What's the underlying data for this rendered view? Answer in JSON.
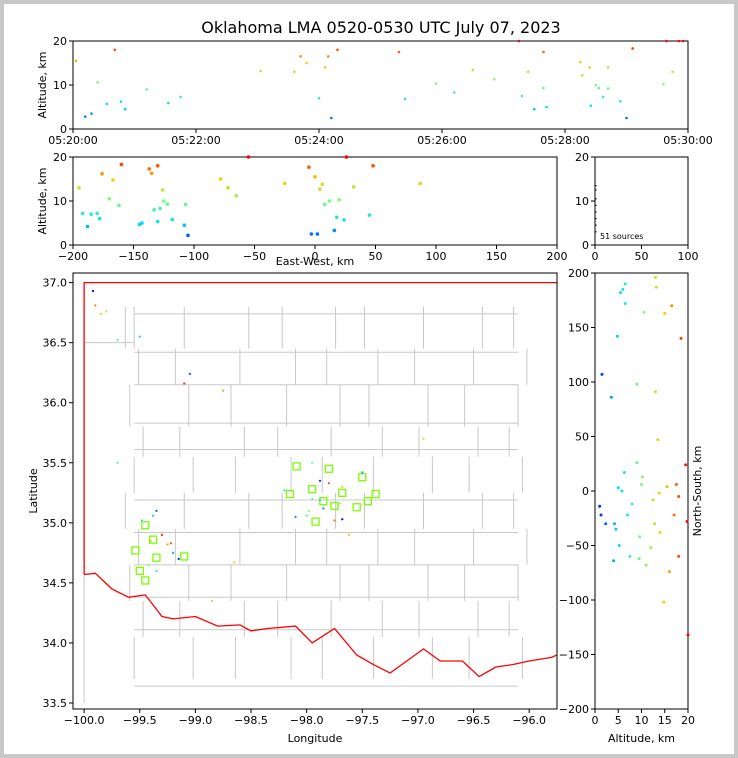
{
  "title": "Oklahoma LMA 0520-0530 UTC July 07, 2023",
  "colors": {
    "state_border": "#ff0000",
    "county_lines": "#c8c8c8",
    "station_marker": "#7cfc00"
  },
  "chart_data": [
    {
      "id": "time_altitude",
      "type": "scatter",
      "xlabel": "",
      "ylabel": "Altitude, km",
      "x_ticks": [
        "05:20:00",
        "05:22:00",
        "05:24:00",
        "05:26:00",
        "05:28:00",
        "05:30:00"
      ],
      "x_range_minutes": [
        0,
        10
      ],
      "ylim": [
        0,
        20
      ],
      "y_ticks": [
        0,
        10,
        20
      ],
      "points": [
        [
          0.05,
          15.5
        ],
        [
          0.2,
          2.8
        ],
        [
          0.3,
          3.5
        ],
        [
          0.4,
          10.6
        ],
        [
          0.55,
          5.7
        ],
        [
          0.68,
          18
        ],
        [
          0.78,
          6.2
        ],
        [
          0.85,
          4.5
        ],
        [
          1.2,
          9
        ],
        [
          1.55,
          5.9
        ],
        [
          1.75,
          7.3
        ],
        [
          3.05,
          13.2
        ],
        [
          3.6,
          13
        ],
        [
          3.7,
          16.5
        ],
        [
          3.8,
          15
        ],
        [
          4.0,
          7
        ],
        [
          4.1,
          14
        ],
        [
          4.15,
          16.5
        ],
        [
          4.2,
          2.5
        ],
        [
          4.3,
          18
        ],
        [
          5.3,
          17.5
        ],
        [
          5.4,
          6.8
        ],
        [
          5.9,
          10.3
        ],
        [
          6.2,
          8.3
        ],
        [
          6.5,
          13.4
        ],
        [
          6.85,
          11.3
        ],
        [
          7.25,
          20
        ],
        [
          7.3,
          7.5
        ],
        [
          7.4,
          13
        ],
        [
          7.5,
          4.5
        ],
        [
          7.65,
          17.5
        ],
        [
          7.65,
          9.3
        ],
        [
          7.7,
          5
        ],
        [
          8.25,
          15.2
        ],
        [
          8.28,
          12.2
        ],
        [
          8.4,
          14
        ],
        [
          8.42,
          5.3
        ],
        [
          8.5,
          10
        ],
        [
          8.55,
          9.3
        ],
        [
          8.62,
          7.3
        ],
        [
          8.7,
          9.2
        ],
        [
          8.7,
          14
        ],
        [
          8.9,
          6.3
        ],
        [
          9.0,
          2.5
        ],
        [
          9.1,
          18.3
        ],
        [
          9.6,
          10.2
        ],
        [
          9.65,
          20
        ],
        [
          9.75,
          13
        ],
        [
          9.85,
          20
        ],
        [
          9.92,
          20
        ]
      ]
    },
    {
      "id": "ew_altitude",
      "type": "scatter",
      "xlabel": "East-West, km",
      "ylabel": "Altitude, km",
      "xlim": [
        -200,
        200
      ],
      "x_ticks": [
        -200,
        -150,
        -100,
        -50,
        0,
        50,
        100,
        150,
        200
      ],
      "ylim": [
        0,
        20
      ],
      "y_ticks": [
        0,
        10,
        20
      ],
      "points": [
        [
          -195,
          13
        ],
        [
          -192,
          7.2
        ],
        [
          -188,
          4.2
        ],
        [
          -185,
          7
        ],
        [
          -180,
          7.2
        ],
        [
          -178,
          6
        ],
        [
          -176,
          16.2
        ],
        [
          -170,
          10.5
        ],
        [
          -167,
          14.8
        ],
        [
          -162,
          9
        ],
        [
          -160,
          18.3
        ],
        [
          -145,
          4.7
        ],
        [
          -143,
          5
        ],
        [
          -137,
          17.3
        ],
        [
          -135,
          16.3
        ],
        [
          -133,
          8
        ],
        [
          -130,
          18
        ],
        [
          -130,
          5.3
        ],
        [
          -128,
          8.3
        ],
        [
          -126,
          12.5
        ],
        [
          -125,
          10
        ],
        [
          -122,
          9.3
        ],
        [
          -118,
          5.8
        ],
        [
          -108,
          4.5
        ],
        [
          -107,
          9.2
        ],
        [
          -105,
          2.2
        ],
        [
          -78,
          15
        ],
        [
          -72,
          13
        ],
        [
          -65,
          11.2
        ],
        [
          -55,
          20
        ],
        [
          -25,
          14
        ],
        [
          -5,
          17.7
        ],
        [
          -3,
          2.5
        ],
        [
          0,
          15.5
        ],
        [
          2,
          2.5
        ],
        [
          4,
          12.7
        ],
        [
          6,
          13.8
        ],
        [
          8,
          9.2
        ],
        [
          12,
          10
        ],
        [
          16,
          3.3
        ],
        [
          18,
          6.3
        ],
        [
          20,
          10.3
        ],
        [
          24,
          5.7
        ],
        [
          26,
          20
        ],
        [
          32,
          13.2
        ],
        [
          45,
          6.8
        ],
        [
          48,
          18
        ],
        [
          87,
          14
        ]
      ]
    },
    {
      "id": "histogram",
      "type": "scatter",
      "xlim": [
        0,
        100
      ],
      "x_ticks": [
        0,
        50,
        100
      ],
      "ylim": [
        0,
        20
      ],
      "y_ticks": [
        0,
        10,
        20
      ],
      "annotation": "51 sources",
      "points": [
        [
          0.5,
          13.5
        ],
        [
          0.5,
          12.5
        ],
        [
          0.5,
          10.5
        ],
        [
          0.5,
          9
        ],
        [
          0.5,
          7.5
        ],
        [
          0.5,
          6
        ],
        [
          0.5,
          4.5
        ],
        [
          0.5,
          3
        ]
      ]
    },
    {
      "id": "plan_view",
      "type": "scatter",
      "xlabel": "Longitude",
      "ylabel": "Latitude",
      "xlim": [
        -100.1,
        -95.75
      ],
      "x_ticks": [
        -100.0,
        -99.5,
        -99.0,
        -98.5,
        -98.0,
        -97.5,
        -97.0,
        -96.5,
        -96.0
      ],
      "x_tick_labels": [
        "−100.0",
        "−99.5",
        "−99.0",
        "−98.5",
        "−98.0",
        "−97.5",
        "−97.0",
        "−96.5",
        "−96.0"
      ],
      "ylim": [
        33.45,
        37.08
      ],
      "y_ticks": [
        33.5,
        34.0,
        34.5,
        35.0,
        35.5,
        36.0,
        36.5,
        37.0
      ],
      "y_tick_labels": [
        "33.5",
        "34.0",
        "34.5",
        "35.0",
        "35.5",
        "36.0",
        "36.5",
        "37.0"
      ],
      "stations": [
        [
          -99.54,
          34.77
        ],
        [
          -99.5,
          34.6
        ],
        [
          -99.45,
          34.52
        ],
        [
          -99.45,
          34.98
        ],
        [
          -99.38,
          34.86
        ],
        [
          -99.35,
          34.71
        ],
        [
          -99.1,
          34.72
        ],
        [
          -98.15,
          35.24
        ],
        [
          -98.09,
          35.47
        ],
        [
          -97.95,
          35.28
        ],
        [
          -97.92,
          35.01
        ],
        [
          -97.85,
          35.18
        ],
        [
          -97.8,
          35.45
        ],
        [
          -97.75,
          35.14
        ],
        [
          -97.68,
          35.25
        ],
        [
          -97.55,
          35.13
        ],
        [
          -97.45,
          35.18
        ],
        [
          -97.38,
          35.24
        ],
        [
          -97.5,
          35.38
        ]
      ],
      "points": [
        [
          -99.92,
          36.93
        ],
        [
          -99.9,
          36.81
        ],
        [
          -99.85,
          36.74
        ],
        [
          -99.8,
          36.76
        ],
        [
          -99.7,
          36.52
        ],
        [
          -99.5,
          36.55
        ],
        [
          -99.05,
          36.24
        ],
        [
          -99.1,
          36.16
        ],
        [
          -98.75,
          36.1
        ],
        [
          -96.95,
          35.7
        ],
        [
          -97.95,
          35.5
        ],
        [
          -98.2,
          35.27
        ],
        [
          -97.5,
          35.42
        ],
        [
          -97.88,
          35.35
        ],
        [
          -97.8,
          35.33
        ],
        [
          -97.68,
          35.3
        ],
        [
          -97.7,
          35.16
        ],
        [
          -97.95,
          35.2
        ],
        [
          -97.88,
          35.19
        ],
        [
          -97.85,
          35.12
        ],
        [
          -97.68,
          35.03
        ],
        [
          -97.75,
          35.02
        ],
        [
          -97.62,
          34.9
        ],
        [
          -97.98,
          35.1
        ],
        [
          -98.0,
          35.06
        ],
        [
          -99.38,
          35.06
        ],
        [
          -99.35,
          35.1
        ],
        [
          -99.3,
          34.9
        ],
        [
          -99.25,
          34.82
        ],
        [
          -99.4,
          34.85
        ],
        [
          -99.42,
          34.65
        ],
        [
          -99.35,
          34.6
        ],
        [
          -99.2,
          34.75
        ],
        [
          -99.15,
          34.7
        ],
        [
          -99.22,
          34.83
        ],
        [
          -98.65,
          34.67
        ],
        [
          -98.85,
          34.35
        ],
        [
          -99.7,
          35.5
        ],
        [
          -99.48,
          35.02
        ],
        [
          -98.1,
          35.05
        ]
      ]
    },
    {
      "id": "ns_altitude",
      "type": "scatter",
      "xlabel": "Altitude, km",
      "ylabel": "North-South, km",
      "xlim": [
        0,
        20
      ],
      "x_ticks": [
        0,
        5,
        10,
        15,
        20
      ],
      "ylim": [
        -200,
        200
      ],
      "y_ticks": [
        -200,
        -150,
        -100,
        -50,
        0,
        50,
        100,
        150,
        200
      ],
      "points": [
        [
          1,
          -14
        ],
        [
          1.3,
          -22
        ],
        [
          1.5,
          107
        ],
        [
          2.3,
          -30
        ],
        [
          3.5,
          86
        ],
        [
          4,
          -64
        ],
        [
          4.2,
          -30
        ],
        [
          4.5,
          -35
        ],
        [
          4.8,
          142
        ],
        [
          5,
          3
        ],
        [
          5.2,
          -50
        ],
        [
          5.5,
          182
        ],
        [
          5.8,
          0
        ],
        [
          6,
          185
        ],
        [
          6.3,
          17
        ],
        [
          6.5,
          172
        ],
        [
          6.5,
          190
        ],
        [
          7,
          -22
        ],
        [
          7.5,
          -60
        ],
        [
          8,
          -12
        ],
        [
          9,
          98
        ],
        [
          9,
          26
        ],
        [
          9.5,
          -62
        ],
        [
          9.6,
          -42
        ],
        [
          10,
          6
        ],
        [
          10.2,
          13
        ],
        [
          10.5,
          164
        ],
        [
          11,
          -68
        ],
        [
          12,
          -52
        ],
        [
          12.5,
          -8
        ],
        [
          12.8,
          -30
        ],
        [
          13,
          91
        ],
        [
          13,
          196
        ],
        [
          13.2,
          187
        ],
        [
          13.5,
          47
        ],
        [
          13.8,
          -2
        ],
        [
          14,
          -38
        ],
        [
          14.8,
          -102
        ],
        [
          15,
          163
        ],
        [
          15.5,
          4
        ],
        [
          16,
          -74
        ],
        [
          16.5,
          170
        ],
        [
          17,
          -22
        ],
        [
          17.5,
          6
        ],
        [
          18,
          -5
        ],
        [
          18.5,
          140
        ],
        [
          18,
          -60
        ],
        [
          19.5,
          24
        ],
        [
          19.8,
          -28
        ],
        [
          20,
          -132
        ]
      ]
    }
  ]
}
